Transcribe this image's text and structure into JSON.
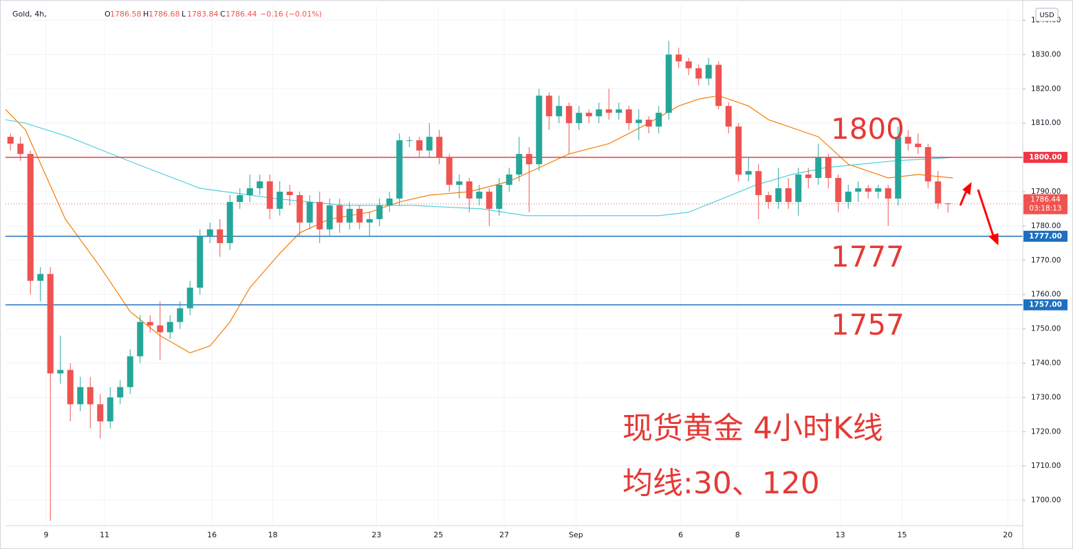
{
  "chart_data": {
    "type": "candlestick",
    "header": {
      "symbol": "Gold, 4h,",
      "ohlc": [
        {
          "key": "O",
          "value": "1786.58"
        },
        {
          "key": "H",
          "value": "1786.68"
        },
        {
          "key": "L",
          "value": "1783.84"
        },
        {
          "key": "C",
          "value": "1786.44"
        }
      ],
      "change": "−0.16 (−0.01%)"
    },
    "currency": "USD",
    "up_color": "#26a69a",
    "down_color": "#ef5350",
    "candles": {
      "open": [
        1806,
        1804,
        1801,
        1764,
        1766,
        1737,
        1738,
        1728,
        1733,
        1728,
        1723,
        1730,
        1733,
        1742,
        1752,
        1751,
        1749,
        1752,
        1756,
        1762,
        1777,
        1779,
        1775,
        1787,
        1789,
        1791,
        1793,
        1785,
        1790,
        1789,
        1781,
        1787,
        1779,
        1786,
        1781,
        1785,
        1781,
        1782,
        1786,
        1788,
        1805,
        1805,
        1802,
        1806,
        1800,
        1792,
        1793,
        1788,
        1790,
        1785,
        1792,
        1795,
        1801,
        1798,
        1818,
        1812,
        1815,
        1810,
        1813,
        1812,
        1814,
        1813,
        1814,
        1810,
        1811,
        1809,
        1813,
        1830,
        1828,
        1826,
        1823,
        1827,
        1815,
        1809,
        1795,
        1796,
        1789,
        1787,
        1791,
        1787,
        1795,
        1794,
        1800,
        1794,
        1787,
        1790,
        1791,
        1790,
        1791,
        1788,
        1806,
        1804,
        1803,
        1793,
        1786.58
      ],
      "high": [
        1807,
        1806,
        1802,
        1768,
        1768,
        1748,
        1740,
        1736,
        1736,
        1731,
        1733,
        1735,
        1744,
        1754,
        1754,
        1758,
        1754,
        1758,
        1764,
        1779,
        1781,
        1782,
        1789,
        1791,
        1795,
        1795,
        1795,
        1793,
        1792,
        1790,
        1789,
        1790,
        1788,
        1788,
        1787,
        1786,
        1784,
        1788,
        1790,
        1807,
        1806,
        1806,
        1810,
        1808,
        1801,
        1795,
        1794,
        1792,
        1791,
        1794,
        1797,
        1806,
        1803,
        1820,
        1819,
        1818,
        1816,
        1815,
        1814,
        1816,
        1820,
        1816,
        1815,
        1814,
        1812,
        1815,
        1834,
        1832,
        1829,
        1827,
        1829,
        1828,
        1816,
        1810,
        1800,
        1798,
        1790,
        1797,
        1794,
        1797,
        1797,
        1804,
        1801,
        1795,
        1792,
        1793,
        1792,
        1792,
        1792,
        1809,
        1808,
        1807,
        1804,
        1796,
        1786.68
      ],
      "low": [
        1802,
        1799,
        1760,
        1758,
        1694,
        1734,
        1723,
        1726,
        1721,
        1718,
        1721,
        1728,
        1731,
        1740,
        1749,
        1741,
        1747,
        1750,
        1754,
        1760,
        1775,
        1771,
        1773,
        1785,
        1787,
        1789,
        1782,
        1783,
        1786,
        1777,
        1779,
        1775,
        1777,
        1778,
        1779,
        1779,
        1777,
        1780,
        1784,
        1786,
        1803,
        1800,
        1800,
        1798,
        1790,
        1788,
        1784,
        1786,
        1780,
        1783,
        1790,
        1793,
        1784,
        1796,
        1808,
        1810,
        1801,
        1808,
        1810,
        1810,
        1811,
        1811,
        1808,
        1805,
        1807,
        1807,
        1811,
        1826,
        1824,
        1821,
        1821,
        1814,
        1807,
        1793,
        1793,
        1782,
        1785,
        1785,
        1785,
        1783,
        1791,
        1792,
        1791,
        1784,
        1785,
        1787,
        1788,
        1788,
        1780,
        1786,
        1802,
        1801,
        1791,
        1785,
        1783.84
      ],
      "close": [
        1804,
        1801,
        1764,
        1766,
        1737,
        1738,
        1728,
        1733,
        1728,
        1723,
        1730,
        1733,
        1742,
        1752,
        1751,
        1749,
        1752,
        1756,
        1762,
        1777,
        1779,
        1775,
        1787,
        1789,
        1791,
        1793,
        1785,
        1790,
        1789,
        1781,
        1787,
        1779,
        1786,
        1781,
        1785,
        1781,
        1782,
        1786,
        1788,
        1805,
        1805,
        1802,
        1806,
        1800,
        1792,
        1793,
        1788,
        1790,
        1785,
        1792,
        1795,
        1801,
        1798,
        1818,
        1812,
        1815,
        1810,
        1813,
        1812,
        1814,
        1813,
        1814,
        1810,
        1811,
        1809,
        1813,
        1830,
        1828,
        1826,
        1823,
        1827,
        1815,
        1809,
        1795,
        1796,
        1789,
        1787,
        1791,
        1787,
        1795,
        1794,
        1800,
        1794,
        1787,
        1790,
        1791,
        1790,
        1791,
        1788,
        1806,
        1804,
        1803,
        1793,
        1786.58,
        1786.44
      ]
    },
    "series": [
      {
        "color": "#f57c00",
        "x": [
          -0.5,
          1.5,
          3.5,
          5.5,
          9,
          12,
          15,
          18,
          20,
          22,
          24,
          27,
          29,
          32,
          36,
          39,
          42,
          46,
          50,
          53,
          56,
          60,
          64,
          67,
          69,
          71,
          74,
          76,
          81,
          84,
          88,
          91,
          94.5
        ],
        "values": [
          1814,
          1808,
          1795,
          1782,
          1768,
          1755,
          1748,
          1743,
          1745,
          1752,
          1762,
          1772,
          1778,
          1782,
          1784,
          1787,
          1789,
          1790,
          1793,
          1797,
          1801,
          1804,
          1810,
          1815,
          1817,
          1818,
          1815,
          1811,
          1806,
          1798,
          1794,
          1795,
          1794
        ]
      },
      {
        "color": "#4dd0e1",
        "x": [
          -0.5,
          1.5,
          5.8,
          12.7,
          19,
          26.5,
          33.4,
          40.3,
          47.2,
          51.7,
          61,
          65,
          68,
          71.4,
          74.8,
          78.3,
          81.7,
          85.2,
          88.6,
          94.5
        ],
        "values": [
          1811,
          1810,
          1806,
          1798,
          1791,
          1788,
          1786,
          1786,
          1785,
          1783,
          1783,
          1783,
          1784,
          1788,
          1792,
          1795,
          1797,
          1798,
          1799,
          1800
        ]
      }
    ],
    "price_lines": [
      {
        "value": 1800,
        "label": "1800.00",
        "color": "#f23645"
      },
      {
        "value": 1777,
        "label": "1777.00",
        "color": "#1e6fbf"
      },
      {
        "value": 1757,
        "label": "1757.00",
        "color": "#1e6fbf"
      }
    ],
    "last_price": {
      "value": 1786.44,
      "label": "1786.44",
      "countdown": "03:18:13",
      "color": "#ef5350"
    },
    "annotations": [
      {
        "text": "1800"
      },
      {
        "text": "1777"
      },
      {
        "text": "1757"
      },
      {
        "text": "现货黄金 4小时K线"
      },
      {
        "text": "均线:30、120"
      }
    ],
    "xlim": [
      -0.5,
      101.5
    ],
    "xticks": [
      {
        "value": 3.57,
        "label": "9"
      },
      {
        "value": 9.43,
        "label": "11"
      },
      {
        "value": 20.2,
        "label": "16"
      },
      {
        "value": 26.3,
        "label": "18"
      },
      {
        "value": 36.7,
        "label": "23"
      },
      {
        "value": 42.9,
        "label": "25"
      },
      {
        "value": 49.5,
        "label": "27"
      },
      {
        "value": 56.7,
        "label": "Sep"
      },
      {
        "value": 67.2,
        "label": "6"
      },
      {
        "value": 72.9,
        "label": "8"
      },
      {
        "value": 83.2,
        "label": "13"
      },
      {
        "value": 89.4,
        "label": "15"
      },
      {
        "value": 100,
        "label": "20"
      }
    ],
    "ylim": [
      1692.6,
      1844.3
    ],
    "yticks": [
      {
        "value": 1700,
        "label": "1700.00"
      },
      {
        "value": 1710,
        "label": "1710.00"
      },
      {
        "value": 1720,
        "label": "1720.00"
      },
      {
        "value": 1730,
        "label": "1730.00"
      },
      {
        "value": 1740,
        "label": "1740.00"
      },
      {
        "value": 1750,
        "label": "1750.00"
      },
      {
        "value": 1760,
        "label": "1760.00"
      },
      {
        "value": 1770,
        "label": "1770.00"
      },
      {
        "value": 1780,
        "label": "1780.00"
      },
      {
        "value": 1790,
        "label": "1790.00"
      },
      {
        "value": 1800,
        "label": "1800.00"
      },
      {
        "value": 1810,
        "label": "1810.00"
      },
      {
        "value": 1820,
        "label": "1820.00"
      },
      {
        "value": 1830,
        "label": "1830.00"
      },
      {
        "value": 1840,
        "label": "1840.00"
      }
    ],
    "grid": true
  }
}
